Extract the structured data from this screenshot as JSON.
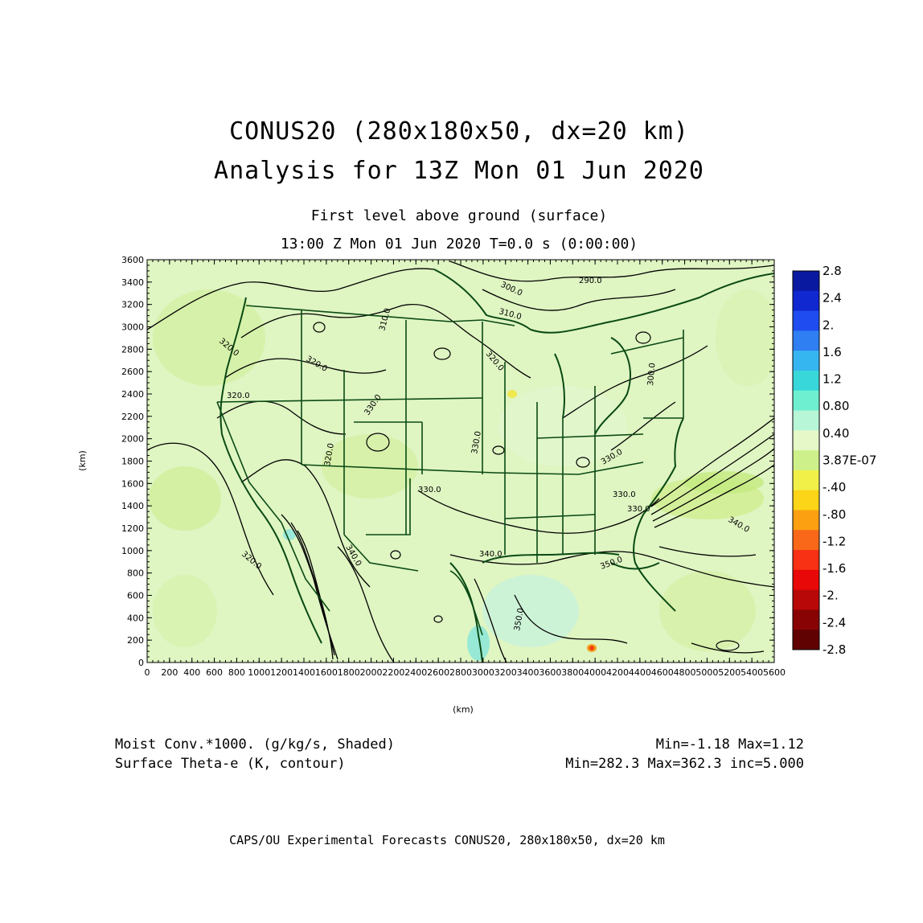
{
  "title": {
    "line1": "CONUS20 (280x180x50, dx=20 km)",
    "line2": "Analysis for 13Z Mon 01 Jun 2020"
  },
  "subtitle": {
    "line1": "First level above ground (surface)",
    "line2": "13:00 Z Mon 01 Jun 2020    T=0.0 s (0:00:00)"
  },
  "axes": {
    "xlabel": "(km)",
    "ylabel": "(km)",
    "x_ticks": [
      "0",
      "200",
      "400",
      "600",
      "800",
      "1000",
      "1200",
      "1400",
      "1600",
      "1800",
      "2000",
      "2200",
      "2400",
      "2600",
      "2800",
      "3000",
      "3200",
      "3400",
      "3600",
      "3800",
      "4000",
      "4200",
      "4400",
      "4600",
      "4800",
      "5000",
      "5200",
      "5400",
      "5600"
    ],
    "y_ticks": [
      "0",
      "200",
      "400",
      "600",
      "800",
      "1000",
      "1200",
      "1400",
      "1600",
      "1800",
      "2000",
      "2200",
      "2400",
      "2600",
      "2800",
      "3000",
      "3200",
      "3400",
      "3600"
    ],
    "x_range": [
      0,
      5600
    ],
    "y_range": [
      0,
      3600
    ]
  },
  "colorbar": {
    "labels": [
      "2.8",
      "2.4",
      "2.",
      "1.6",
      "1.2",
      "0.80",
      "0.40",
      "3.87E-07",
      "-.40",
      "-.80",
      "-1.2",
      "-1.6",
      "-2.",
      "-2.4",
      "-2.8"
    ],
    "colors": [
      "#0a1aa0",
      "#1028d0",
      "#1f4cf0",
      "#2f7ef2",
      "#36b6f0",
      "#38d8da",
      "#6ef0d0",
      "#b8f6d8",
      "#e6f8c8",
      "#cef08a",
      "#f0f048",
      "#fcd418",
      "#fca012",
      "#f86818",
      "#f83014",
      "#e80808",
      "#b80808",
      "#880404",
      "#600202"
    ]
  },
  "contour_labels": [
    "300.0",
    "290.0",
    "310.0",
    "310.0",
    "320.0",
    "320.0",
    "320.0",
    "320.0",
    "330.0",
    "330.0",
    "320.0",
    "330.0",
    "330.0",
    "330.0",
    "340.0",
    "340.0",
    "350.0",
    "350.0",
    "340.0",
    "300.0",
    "320.0",
    "330.0"
  ],
  "footer": {
    "field1": "Moist Conv.*1000. (g/kg/s, Shaded)",
    "field1_stats": "Min=-1.18 Max=1.12",
    "field2": "Surface Theta-e (K, contour)",
    "field2_stats": "Min=282.3 Max=362.3 inc=5.000",
    "credit": "CAPS/OU Experimental Forecasts  CONUS20, 280x180x50, dx=20 km"
  },
  "colors": {
    "map_base": "#dff5c2",
    "contour": "#000000",
    "boundary": "#0a4a14"
  }
}
